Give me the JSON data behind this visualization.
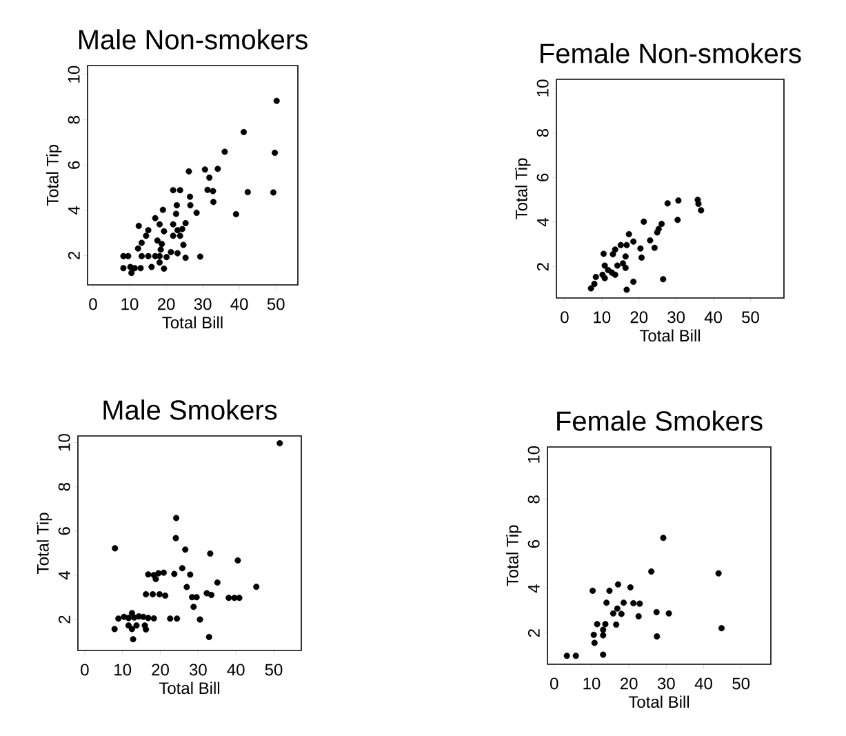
{
  "chart_data": [
    {
      "type": "scatter",
      "title": "Male Non-smokers",
      "xlabel": "Total Bill",
      "ylabel": "Total Tip",
      "color": "#000000",
      "marker": "circle",
      "xlim": [
        -1.5,
        56
      ],
      "ylim": [
        0.7,
        10.4
      ],
      "xticks": [
        0,
        10,
        20,
        30,
        40,
        50
      ],
      "yticks": [
        2,
        4,
        6,
        8,
        10
      ],
      "x": [
        50.2,
        41.2,
        49.7,
        36.0,
        26.2,
        30.6,
        34.1,
        31.8,
        21.9,
        23.8,
        31.3,
        32.8,
        42.3,
        49.3,
        26.5,
        32.9,
        22.9,
        26.6,
        39.1,
        22.7,
        28.3,
        19.1,
        17.0,
        12.5,
        25.3,
        24.4,
        21.9,
        23.1,
        18.2,
        19.4,
        21.9,
        23.8,
        15.1,
        14.5,
        13.3,
        12.3,
        17.6,
        18.8,
        18.5,
        24.7,
        21.3,
        23.1,
        25.3,
        29.3,
        8.3,
        9.6,
        13.3,
        15.1,
        17.0,
        18.2,
        20.1,
        8.3,
        10.2,
        11.4,
        13.0,
        16.0,
        18.2,
        19.4,
        10.5
      ],
      "values": [
        8.84,
        7.46,
        6.54,
        6.59,
        5.72,
        5.8,
        5.83,
        5.44,
        4.89,
        4.89,
        4.9,
        4.85,
        4.8,
        4.79,
        4.6,
        4.37,
        4.22,
        4.22,
        3.83,
        3.84,
        3.89,
        4.02,
        3.65,
        3.31,
        3.43,
        3.17,
        3.38,
        3.12,
        3.38,
        3.07,
        2.87,
        2.87,
        3.12,
        2.87,
        2.56,
        2.31,
        2.66,
        2.51,
        2.26,
        2.47,
        2.15,
        2.1,
        1.9,
        1.95,
        1.97,
        1.97,
        1.97,
        1.97,
        1.97,
        1.97,
        1.93,
        1.44,
        1.49,
        1.44,
        1.44,
        1.49,
        1.69,
        1.42,
        1.23
      ]
    },
    {
      "type": "scatter",
      "title": "Female Non-smokers",
      "xlabel": "Total Bill",
      "ylabel": "Total Tip",
      "color": "#000000",
      "marker": "circle",
      "xlim": [
        -2.2,
        59
      ],
      "ylim": [
        0.6,
        10.4
      ],
      "xticks": [
        0,
        10,
        20,
        30,
        40,
        50
      ],
      "yticks": [
        2,
        4,
        6,
        8,
        10
      ],
      "x": [
        35.8,
        36.0,
        36.7,
        30.6,
        27.7,
        30.4,
        21.3,
        26.1,
        25.3,
        24.9,
        23.0,
        24.2,
        17.3,
        18.5,
        15.1,
        16.7,
        20.4,
        20.7,
        13.6,
        13.0,
        10.5,
        16.4,
        15.7,
        14.2,
        16.4,
        10.8,
        11.7,
        12.7,
        13.6,
        10.2,
        10.8,
        8.4,
        8.0,
        7.1,
        18.5,
        16.7,
        26.5
      ],
      "values": [
        5.0,
        4.82,
        4.53,
        4.97,
        4.84,
        4.1,
        4.02,
        3.92,
        3.69,
        3.54,
        3.18,
        2.85,
        3.46,
        3.13,
        2.97,
        2.97,
        2.82,
        2.41,
        2.77,
        2.56,
        2.58,
        2.46,
        2.15,
        2.05,
        1.95,
        2.05,
        1.85,
        1.74,
        1.64,
        1.64,
        1.49,
        1.54,
        1.23,
        1.03,
        1.33,
        0.97,
        1.44
      ]
    },
    {
      "type": "scatter",
      "title": "Male Smokers",
      "xlabel": "Total Bill",
      "ylabel": "Total Tip",
      "color": "#000000",
      "marker": "circle",
      "xlim": [
        -1.8,
        57.3
      ],
      "ylim": [
        0.6,
        10.3
      ],
      "xticks": [
        0,
        10,
        20,
        30,
        40,
        50
      ],
      "yticks": [
        2,
        4,
        6,
        8,
        10
      ],
      "x": [
        51.6,
        8.0,
        24.2,
        24.1,
        26.6,
        33.2,
        40.5,
        25.8,
        27.9,
        16.8,
        18.3,
        19.5,
        20.9,
        18.8,
        23.7,
        35.1,
        45.4,
        27.0,
        16.2,
        18.0,
        19.8,
        21.3,
        32.3,
        33.5,
        28.4,
        29.6,
        38.1,
        39.6,
        40.9,
        28.8,
        30.5,
        22.6,
        24.4,
        8.9,
        10.4,
        11.6,
        13.1,
        14.3,
        15.5,
        16.8,
        18.3,
        12.5,
        7.9,
        11.6,
        12.5,
        13.7,
        15.9,
        16.2,
        12.8,
        32.9
      ],
      "values": [
        9.97,
        5.22,
        6.59,
        5.68,
        5.16,
        4.98,
        4.67,
        4.32,
        4.03,
        4.04,
        4.01,
        4.09,
        4.12,
        3.83,
        4.06,
        3.67,
        3.48,
        3.47,
        3.14,
        3.14,
        3.14,
        3.08,
        3.19,
        3.11,
        3.01,
        3.01,
        2.98,
        2.98,
        2.98,
        2.57,
        2.0,
        2.04,
        2.04,
        2.04,
        2.12,
        2.07,
        2.09,
        2.14,
        2.12,
        2.07,
        2.05,
        2.29,
        1.57,
        1.73,
        1.57,
        1.73,
        1.73,
        1.55,
        1.11,
        1.21
      ]
    },
    {
      "type": "scatter",
      "title": "Female Smokers",
      "xlabel": "Total Bill",
      "ylabel": "Total Tip",
      "color": "#000000",
      "marker": "circle",
      "xlim": [
        -1.8,
        58
      ],
      "ylim": [
        0.6,
        10.35
      ],
      "xticks": [
        0,
        10,
        20,
        30,
        40,
        50
      ],
      "yticks": [
        2,
        4,
        6,
        8,
        10
      ],
      "x": [
        29.2,
        26.0,
        44.0,
        17.1,
        20.4,
        10.3,
        14.8,
        14.0,
        18.6,
        21.2,
        22.9,
        16.9,
        15.8,
        18.0,
        22.6,
        27.4,
        30.7,
        16.6,
        11.5,
        13.7,
        13.1,
        10.6,
        13.1,
        10.8,
        27.5,
        44.8,
        13.1,
        3.4,
        5.8
      ],
      "values": [
        6.27,
        4.76,
        4.68,
        4.18,
        4.05,
        3.9,
        3.9,
        3.36,
        3.36,
        3.34,
        3.32,
        3.1,
        2.88,
        2.86,
        2.75,
        2.94,
        2.88,
        2.38,
        2.4,
        2.4,
        2.15,
        1.92,
        1.9,
        1.56,
        1.85,
        2.22,
        1.03,
        0.98,
        0.98
      ]
    }
  ]
}
